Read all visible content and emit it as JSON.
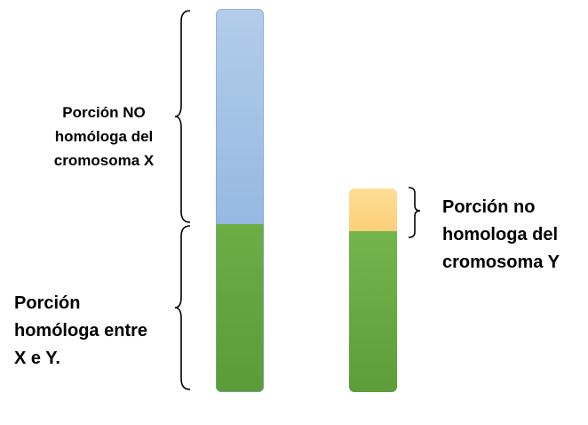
{
  "labels": {
    "x_nonhomologous": [
      "Porción NO",
      "homóloga del",
      "cromosoma X"
    ],
    "homologous": [
      "Porción",
      "homóloga entre",
      "X e Y."
    ],
    "y_nonhomologous": [
      "Porción no",
      "homologa del",
      "cromosoma Y"
    ]
  },
  "colors": {
    "x_nonhomologous_fill": "#a9c6e8",
    "homologous_fill": "#6aab45",
    "y_nonhomologous_fill": "#fdd78a",
    "brace_stroke": "#000000"
  }
}
